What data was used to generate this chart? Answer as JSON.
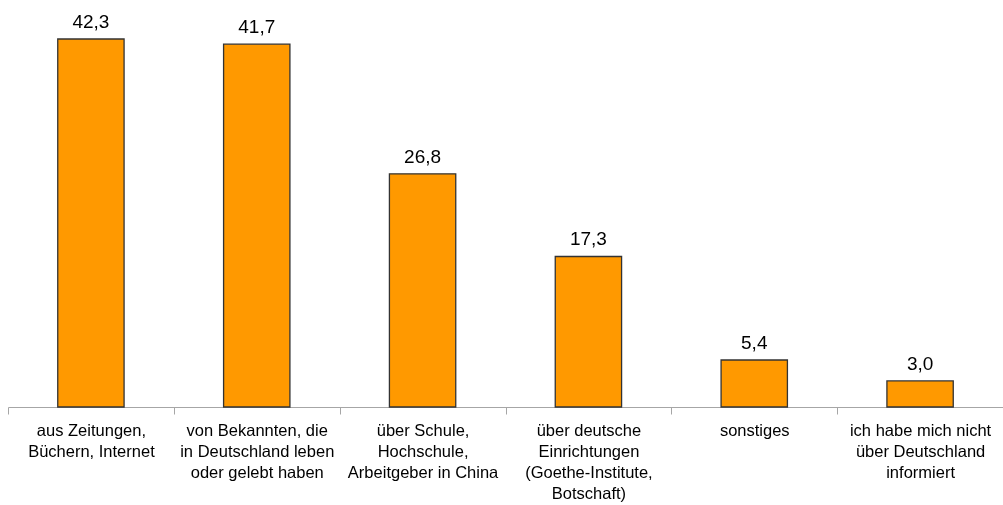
{
  "chart_data": {
    "type": "bar",
    "categories": [
      "aus Zeitungen,\nBüchern, Internet",
      "von Bekannten, die\nin Deutschland leben\noder gelebt haben",
      "über Schule,\nHochschule,\nArbeitgeber in China",
      "über deutsche\nEinrichtungen\n(Goethe-Institute,\nBotschaft)",
      "sonstiges",
      "ich habe mich nicht\nüber Deutschland\ninformiert"
    ],
    "values": [
      42.3,
      41.7,
      26.8,
      17.3,
      5.4,
      3.0
    ],
    "value_labels": [
      "42,3",
      "41,7",
      "26,8",
      "17,3",
      "5,4",
      "3,0"
    ],
    "color": "#ff9900"
  }
}
